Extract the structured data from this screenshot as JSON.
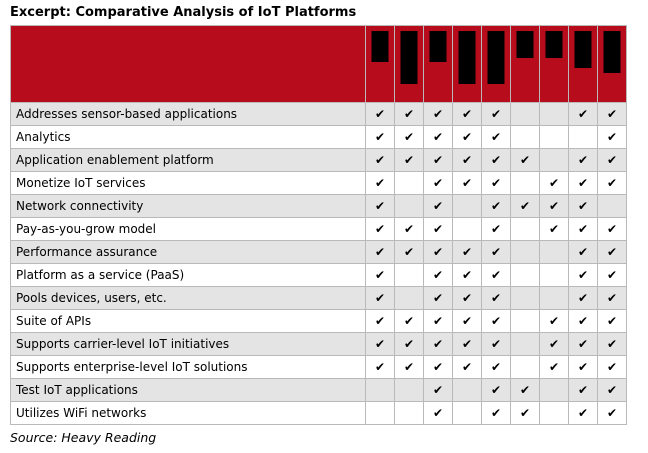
{
  "title": "Excerpt: Comparative Analysis of IoT Platforms",
  "source": "Source: Heavy Reading",
  "colors": {
    "header_bg": "#b70c1c",
    "row_shade": "#e4e4e4"
  },
  "check_glyph": "✔",
  "header_bars": [
    0.45,
    0.78,
    0.45,
    0.78,
    0.78,
    0.4,
    0.4,
    0.55,
    0.62
  ],
  "rows": [
    {
      "feature": "Addresses sensor-based applications",
      "checks": [
        1,
        1,
        1,
        1,
        1,
        0,
        0,
        1,
        1
      ]
    },
    {
      "feature": "Analytics",
      "checks": [
        1,
        1,
        1,
        1,
        1,
        0,
        0,
        0,
        1
      ]
    },
    {
      "feature": "Application enablement platform",
      "checks": [
        1,
        1,
        1,
        1,
        1,
        1,
        0,
        1,
        1
      ]
    },
    {
      "feature": "Monetize IoT services",
      "checks": [
        1,
        0,
        1,
        1,
        1,
        0,
        1,
        1,
        1
      ]
    },
    {
      "feature": "Network connectivity",
      "checks": [
        1,
        0,
        1,
        0,
        1,
        1,
        1,
        1,
        0
      ]
    },
    {
      "feature": "Pay-as-you-grow model",
      "checks": [
        1,
        1,
        1,
        0,
        1,
        0,
        1,
        1,
        1
      ]
    },
    {
      "feature": "Performance assurance",
      "checks": [
        1,
        1,
        1,
        1,
        1,
        0,
        0,
        1,
        1
      ]
    },
    {
      "feature": "Platform as a service (PaaS)",
      "checks": [
        1,
        0,
        1,
        1,
        1,
        0,
        0,
        1,
        1
      ]
    },
    {
      "feature": "Pools devices, users, etc.",
      "checks": [
        1,
        0,
        1,
        1,
        1,
        0,
        0,
        1,
        1
      ]
    },
    {
      "feature": "Suite of APIs",
      "checks": [
        1,
        1,
        1,
        1,
        1,
        0,
        1,
        1,
        1
      ]
    },
    {
      "feature": "Supports carrier-level IoT initiatives",
      "checks": [
        1,
        1,
        1,
        1,
        1,
        0,
        1,
        1,
        1
      ]
    },
    {
      "feature": "Supports enterprise-level IoT solutions",
      "checks": [
        1,
        1,
        1,
        1,
        1,
        0,
        1,
        1,
        1
      ]
    },
    {
      "feature": "Test IoT applications",
      "checks": [
        0,
        0,
        1,
        0,
        1,
        1,
        0,
        1,
        1
      ]
    },
    {
      "feature": "Utilizes WiFi networks",
      "checks": [
        0,
        0,
        1,
        0,
        1,
        1,
        0,
        1,
        1
      ]
    }
  ]
}
